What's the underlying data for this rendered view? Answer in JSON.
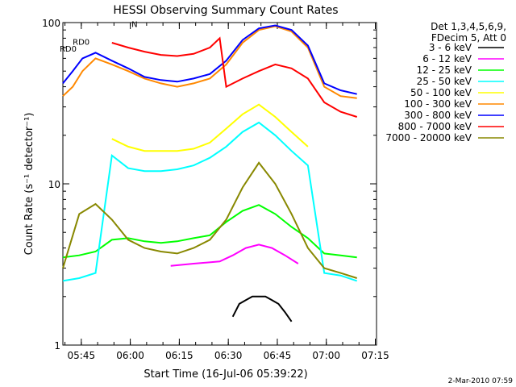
{
  "chart_data": {
    "type": "line",
    "title": "HESSI Observing Summary Count Rates",
    "xlabel": "Start Time (16-Jul-06 05:39:22)",
    "ylabel": "Count Rate (s⁻¹ detector⁻¹)",
    "yscale": "log",
    "ylim": [
      1,
      100
    ],
    "xlim_minutes": [
      0,
      96
    ],
    "x_ticks": [
      "05:45",
      "06:00",
      "06:15",
      "06:30",
      "06:45",
      "07:00",
      "07:15"
    ],
    "y_ticks": [
      "1",
      "10",
      "100"
    ],
    "legend_header": [
      "Det 1,3,4,5,6,9,",
      "FDecim 5, Att 0"
    ],
    "grid": false,
    "legend_position": "right",
    "annotations": [
      {
        "text": "RD0",
        "x": 3,
        "y": 73
      },
      {
        "text": "N",
        "x": 21,
        "y": 94
      },
      {
        "text": "RD0",
        "x": -1,
        "y": 66
      }
    ],
    "series": [
      {
        "name": "3 - 6 keV",
        "color": "#000000",
        "x": [
          52,
          54,
          56,
          58,
          60,
          62,
          64,
          66,
          68,
          70
        ],
        "y": [
          1.5,
          1.8,
          1.9,
          2.0,
          2.0,
          2.0,
          1.9,
          1.8,
          1.6,
          1.4
        ]
      },
      {
        "name": "6 - 12 keV",
        "color": "#ff00ff",
        "x": [
          33,
          40,
          48,
          52,
          56,
          60,
          64,
          68,
          72
        ],
        "y": [
          3.1,
          3.2,
          3.3,
          3.6,
          4.0,
          4.2,
          4.0,
          3.6,
          3.2
        ]
      },
      {
        "name": "12 - 25 keV",
        "color": "#00ff00",
        "x": [
          0,
          5,
          10,
          15,
          20,
          25,
          30,
          35,
          40,
          45,
          50,
          55,
          60,
          65,
          70,
          75,
          80,
          85,
          90
        ],
        "y": [
          3.5,
          3.6,
          3.8,
          4.5,
          4.6,
          4.4,
          4.3,
          4.4,
          4.6,
          4.8,
          5.8,
          6.8,
          7.4,
          6.5,
          5.4,
          4.6,
          3.7,
          3.6,
          3.5
        ]
      },
      {
        "name": "25 - 50 keV",
        "color": "#00ffff",
        "x": [
          0,
          5,
          10,
          15,
          20,
          25,
          30,
          35,
          40,
          45,
          50,
          55,
          60,
          65,
          70,
          75,
          80,
          85,
          90
        ],
        "y": [
          2.5,
          2.6,
          2.8,
          15,
          12.5,
          12,
          12,
          12.3,
          13,
          14.5,
          17,
          21,
          24,
          20,
          16,
          13,
          2.8,
          2.7,
          2.5
        ]
      },
      {
        "name": "50 - 100 keV",
        "color": "#ffff00",
        "x": [
          15,
          20,
          25,
          30,
          35,
          40,
          45,
          50,
          55,
          60,
          65,
          70,
          75
        ],
        "y": [
          19,
          17,
          16,
          16,
          16,
          16.5,
          18,
          22,
          27,
          31,
          26,
          21,
          17
        ]
      },
      {
        "name": "100 - 300 keV",
        "color": "#ff8800",
        "x": [
          0,
          3,
          6,
          10,
          15,
          20,
          25,
          30,
          35,
          40,
          45,
          50,
          55,
          60,
          65,
          70,
          75,
          80,
          85,
          90
        ],
        "y": [
          35,
          40,
          50,
          60,
          55,
          50,
          45,
          42,
          40,
          42,
          45,
          55,
          75,
          90,
          95,
          88,
          70,
          40,
          35,
          34
        ]
      },
      {
        "name": "300 - 800 keV",
        "color": "#0000ff",
        "x": [
          0,
          3,
          6,
          10,
          15,
          20,
          25,
          30,
          35,
          40,
          45,
          50,
          55,
          60,
          65,
          70,
          75,
          80,
          85,
          90
        ],
        "y": [
          42,
          50,
          60,
          65,
          58,
          52,
          46,
          44,
          43,
          45,
          48,
          58,
          78,
          92,
          96,
          90,
          72,
          42,
          38,
          36
        ]
      },
      {
        "name": "800 - 7000 keV",
        "color": "#ff0000",
        "x": [
          15,
          20,
          25,
          30,
          35,
          40,
          45,
          48,
          50,
          55,
          60,
          65,
          70,
          75,
          80,
          85,
          90
        ],
        "y": [
          75,
          70,
          66,
          63,
          62,
          64,
          70,
          80,
          40,
          45,
          50,
          55,
          52,
          45,
          32,
          28,
          26
        ]
      },
      {
        "name": "7000 - 20000 keV",
        "color": "#888800",
        "x": [
          0,
          5,
          10,
          15,
          20,
          25,
          30,
          35,
          40,
          45,
          50,
          55,
          60,
          65,
          70,
          75,
          80,
          85,
          90
        ],
        "y": [
          3.0,
          6.5,
          7.5,
          6.0,
          4.5,
          4.0,
          3.8,
          3.7,
          4.0,
          4.5,
          6.0,
          9.5,
          13.5,
          10,
          6.5,
          4.0,
          3.0,
          2.8,
          2.6
        ]
      }
    ]
  },
  "footer": {
    "timestamp": "2-Mar-2010 07:59"
  }
}
